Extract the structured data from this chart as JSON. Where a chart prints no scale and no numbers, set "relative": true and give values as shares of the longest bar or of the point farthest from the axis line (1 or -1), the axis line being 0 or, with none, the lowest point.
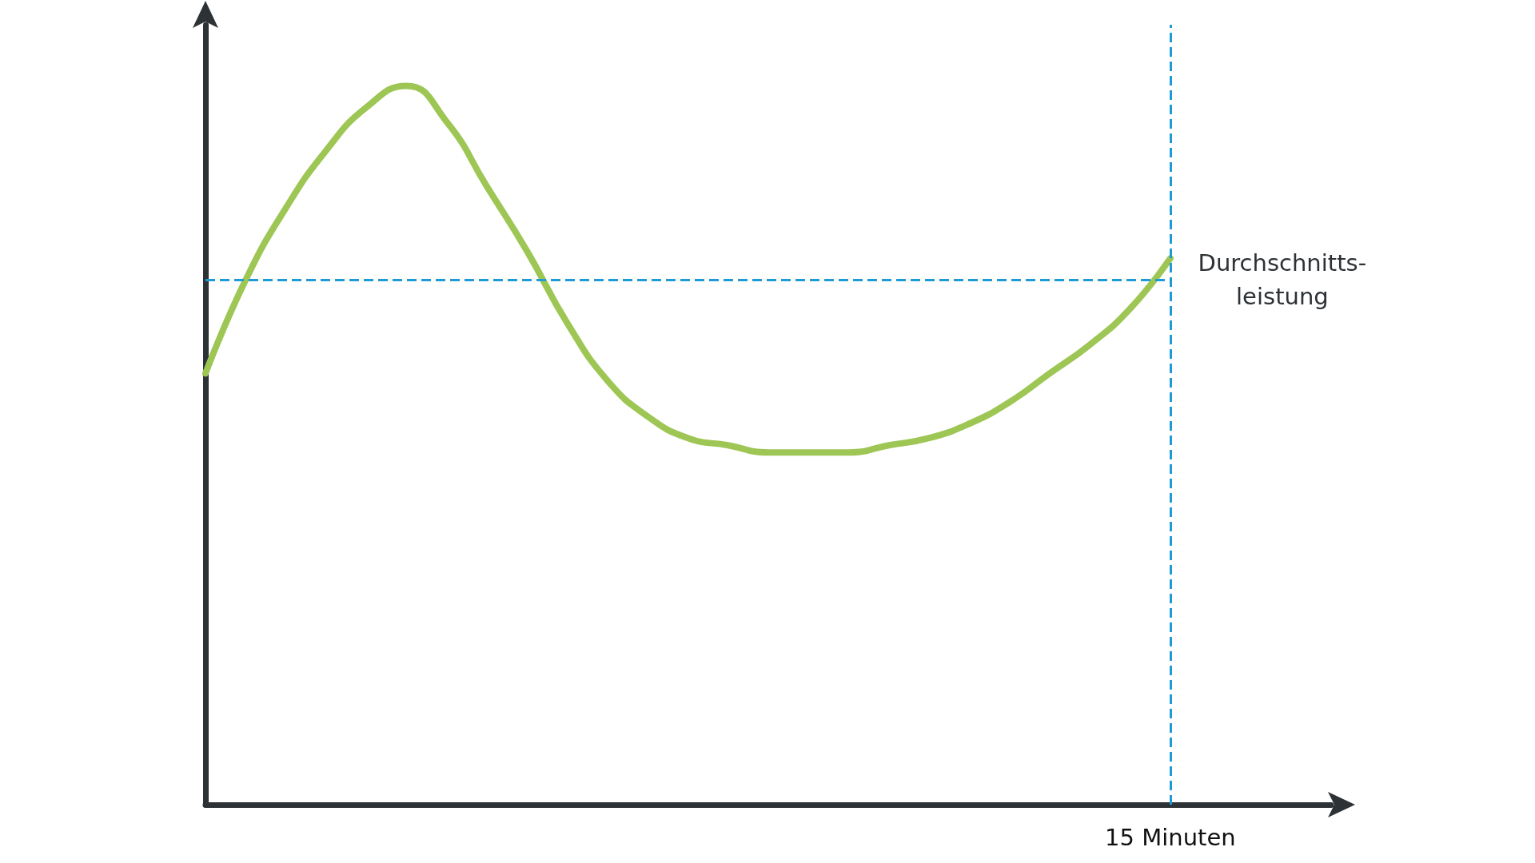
{
  "chart_data": {
    "type": "line",
    "relative": true,
    "categories": [
      null,
      null,
      null,
      null,
      null,
      null,
      null,
      null,
      null,
      null,
      null,
      null,
      null,
      null,
      null,
      null,
      null,
      null,
      null,
      null,
      null,
      null,
      null,
      null,
      null,
      null,
      null,
      null,
      null
    ],
    "series": [
      {
        "color": "#9dc654",
        "values": [
          0.6,
          0.73,
          0.83,
          0.91,
          0.97,
          1,
          0.95,
          0.86,
          0.77,
          0.67,
          0.59,
          0.54,
          0.51,
          0.5,
          0.49,
          0.49,
          0.49,
          0.5,
          0.51,
          0.53,
          0.56,
          0.6,
          0.64,
          0.69,
          0.76,
          null,
          null,
          null,
          null
        ]
      }
    ],
    "ref_lines": [
      {
        "axis": "y",
        "value": 0.73,
        "label": "Durchschnitts-\nleistung",
        "color": "#1e9ad6",
        "line_style": "dashed"
      }
    ],
    "annotations": [
      "15 Minuten"
    ],
    "marker": "none",
    "line_style": "solid",
    "grid": false
  }
}
